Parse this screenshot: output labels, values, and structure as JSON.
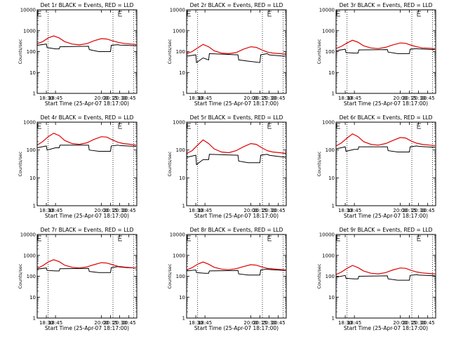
{
  "figure": {
    "line_colors": {
      "events": "#000000",
      "lld": "#dd0000"
    }
  },
  "chart_data": [
    {
      "type": "line",
      "title": "Det 1r BLACK = Events, RED = LLD",
      "xlabel": "Start Time (25-Apr-07 18:17:00)",
      "ylabel": "Counts/sec",
      "yscale": "log",
      "ylim": [
        1,
        10000
      ],
      "xlim": [
        18.25,
        20.9667
      ],
      "xticks": [
        "18:30",
        "18:45",
        "20:00",
        "20:15",
        "20:30",
        "20:45"
      ],
      "yticks": [
        "1",
        "10",
        "100",
        "1000",
        "10000"
      ],
      "vlines": [
        18.55,
        20.3167,
        20.8833
      ],
      "e_markers": [
        18.23,
        20.43
      ],
      "series": [
        {
          "name": "BLACK = Events",
          "color": "#000000",
          "x": [
            18.25,
            18.5,
            18.52,
            18.75,
            18.85,
            18.87,
            19.65,
            19.67,
            19.93,
            20.25,
            20.27,
            20.45,
            20.5,
            20.7,
            20.95
          ],
          "y": [
            200,
            230,
            155,
            135,
            135,
            170,
            180,
            125,
            100,
            100,
            200,
            215,
            205,
            200,
            190
          ]
        },
        {
          "name": "RED = LLD",
          "color": "#dd0000",
          "x": [
            18.25,
            18.4,
            18.55,
            18.7,
            18.85,
            19.0,
            19.2,
            19.4,
            19.6,
            19.8,
            20.0,
            20.15,
            20.3,
            20.45,
            20.6,
            20.8,
            20.95
          ],
          "y": [
            240,
            300,
            450,
            560,
            450,
            300,
            230,
            210,
            240,
            330,
            420,
            400,
            330,
            280,
            250,
            230,
            220
          ]
        }
      ]
    },
    {
      "type": "line",
      "title": "Det 2r BLACK = Events, RED = LLD",
      "xlabel": "Start Time (25-Apr-07 18:17:00)",
      "ylabel": "Counts/sec",
      "yscale": "log",
      "ylim": [
        1,
        10000
      ],
      "xlim": [
        18.25,
        20.9667
      ],
      "xticks": [
        "18:30",
        "18:45",
        "20:00",
        "20:15",
        "20:30",
        "20:45"
      ],
      "yticks": [
        "1",
        "10",
        "100",
        "1000",
        "10000"
      ],
      "vlines": [
        18.55,
        20.3167,
        20.8833
      ],
      "e_markers": [
        18.23,
        20.43
      ],
      "series": [
        {
          "name": "BLACK = Events",
          "color": "#000000",
          "x": [
            18.25,
            18.5,
            18.52,
            18.7,
            18.85,
            18.87,
            19.65,
            19.67,
            19.93,
            20.25,
            20.27,
            20.45,
            20.5,
            20.7,
            20.95
          ],
          "y": [
            60,
            70,
            30,
            50,
            40,
            80,
            70,
            40,
            35,
            30,
            70,
            80,
            70,
            65,
            60
          ]
        },
        {
          "name": "RED = LLD",
          "color": "#dd0000",
          "x": [
            18.25,
            18.4,
            18.55,
            18.7,
            18.85,
            19.0,
            19.2,
            19.4,
            19.6,
            19.8,
            20.0,
            20.15,
            20.3,
            20.45,
            20.6,
            20.8,
            20.95
          ],
          "y": [
            80,
            100,
            150,
            220,
            170,
            110,
            85,
            80,
            90,
            130,
            170,
            160,
            120,
            95,
            85,
            80,
            75
          ]
        }
      ]
    },
    {
      "type": "line",
      "title": "Det 3r BLACK = Events, RED = LLD",
      "xlabel": "Start Time (25-Apr-07 18:17:00)",
      "ylabel": "Counts/sec",
      "yscale": "log",
      "ylim": [
        1,
        10000
      ],
      "xlim": [
        18.25,
        20.9667
      ],
      "xticks": [
        "18:30",
        "18:45",
        "20:00",
        "20:15",
        "20:30",
        "20:45"
      ],
      "yticks": [
        "1",
        "10",
        "100",
        "1000",
        "10000"
      ],
      "vlines": [
        18.55,
        20.3167,
        20.8833
      ],
      "e_markers": [
        18.23,
        20.43
      ],
      "series": [
        {
          "name": "BLACK = Events",
          "color": "#000000",
          "x": [
            18.25,
            18.5,
            18.52,
            18.75,
            18.85,
            18.87,
            19.65,
            19.67,
            19.93,
            20.25,
            20.27,
            20.45,
            20.5,
            20.7,
            20.95
          ],
          "y": [
            110,
            130,
            90,
            85,
            85,
            120,
            125,
            95,
            80,
            80,
            130,
            140,
            135,
            130,
            125
          ]
        },
        {
          "name": "RED = LLD",
          "color": "#dd0000",
          "x": [
            18.25,
            18.4,
            18.55,
            18.7,
            18.85,
            19.0,
            19.2,
            19.4,
            19.6,
            19.8,
            20.0,
            20.15,
            20.3,
            20.45,
            20.6,
            20.8,
            20.95
          ],
          "y": [
            140,
            180,
            260,
            350,
            280,
            190,
            150,
            140,
            160,
            210,
            260,
            250,
            200,
            170,
            150,
            145,
            140
          ]
        }
      ]
    },
    {
      "type": "line",
      "title": "Det 4r BLACK = Events, RED = LLD",
      "xlabel": "Start Time (25-Apr-07 18:17:00)",
      "ylabel": "Counts/sec",
      "yscale": "log",
      "ylim": [
        1,
        1000
      ],
      "xlim": [
        18.25,
        20.9667
      ],
      "xticks": [
        "18:30",
        "18:45",
        "20:00",
        "20:15",
        "20:30",
        "20:45"
      ],
      "yticks": [
        "1",
        "10",
        "100",
        "1000"
      ],
      "vlines": [
        18.55,
        20.3167,
        20.8833
      ],
      "e_markers": [
        18.23,
        20.43
      ],
      "series": [
        {
          "name": "BLACK = Events",
          "color": "#000000",
          "x": [
            18.25,
            18.5,
            18.52,
            18.75,
            18.85,
            18.87,
            19.65,
            19.67,
            19.93,
            20.25,
            20.27,
            20.45,
            20.5,
            20.7,
            20.95
          ],
          "y": [
            120,
            140,
            100,
            120,
            120,
            150,
            150,
            100,
            90,
            90,
            140,
            150,
            145,
            140,
            135
          ]
        },
        {
          "name": "RED = LLD",
          "color": "#dd0000",
          "x": [
            18.25,
            18.4,
            18.55,
            18.7,
            18.85,
            19.0,
            19.2,
            19.4,
            19.6,
            19.8,
            20.0,
            20.15,
            20.3,
            20.45,
            20.6,
            20.8,
            20.95
          ],
          "y": [
            150,
            200,
            300,
            400,
            330,
            220,
            170,
            160,
            180,
            240,
            300,
            290,
            230,
            190,
            170,
            160,
            150
          ]
        }
      ]
    },
    {
      "type": "line",
      "title": "Det 5r BLACK = Events, RED = LLD",
      "xlabel": "Start Time (25-Apr-07 18:17:00)",
      "ylabel": "Counts/sec",
      "yscale": "log",
      "ylim": [
        1,
        1000
      ],
      "xlim": [
        18.25,
        20.9667
      ],
      "xticks": [
        "18:30",
        "18:45",
        "20:00",
        "20:15",
        "20:30",
        "20:45"
      ],
      "yticks": [
        "1",
        "10",
        "100",
        "1000"
      ],
      "vlines": [
        18.55,
        20.3167,
        20.8833
      ],
      "e_markers": [
        18.23,
        20.43
      ],
      "series": [
        {
          "name": "BLACK = Events",
          "color": "#000000",
          "x": [
            18.25,
            18.5,
            18.52,
            18.7,
            18.85,
            18.87,
            19.65,
            19.67,
            19.93,
            20.25,
            20.27,
            20.45,
            20.5,
            20.7,
            20.95
          ],
          "y": [
            55,
            65,
            30,
            45,
            45,
            70,
            65,
            40,
            35,
            35,
            65,
            70,
            65,
            60,
            55
          ]
        },
        {
          "name": "RED = LLD",
          "color": "#dd0000",
          "x": [
            18.25,
            18.4,
            18.55,
            18.7,
            18.85,
            19.0,
            19.2,
            19.4,
            19.6,
            19.8,
            20.0,
            20.15,
            20.3,
            20.45,
            20.6,
            20.8,
            20.95
          ],
          "y": [
            75,
            95,
            150,
            230,
            170,
            110,
            85,
            80,
            95,
            130,
            170,
            160,
            120,
            95,
            85,
            80,
            75
          ]
        }
      ]
    },
    {
      "type": "line",
      "title": "Det 6r BLACK = Events, RED = LLD",
      "xlabel": "Start Time (25-Apr-07 18:17:00)",
      "ylabel": "Counts/sec",
      "yscale": "log",
      "ylim": [
        1,
        1000
      ],
      "xlim": [
        18.25,
        20.9667
      ],
      "xticks": [
        "18:30",
        "18:45",
        "20:00",
        "20:15",
        "20:30",
        "20:45"
      ],
      "yticks": [
        "1",
        "10",
        "100",
        "1000"
      ],
      "vlines": [
        18.55,
        20.3167,
        20.8833
      ],
      "e_markers": [
        18.23,
        20.43
      ],
      "series": [
        {
          "name": "BLACK = Events",
          "color": "#000000",
          "x": [
            18.25,
            18.5,
            18.52,
            18.75,
            18.85,
            18.87,
            19.65,
            19.67,
            19.93,
            20.25,
            20.27,
            20.45,
            20.5,
            20.7,
            20.95
          ],
          "y": [
            110,
            130,
            90,
            105,
            105,
            130,
            130,
            95,
            85,
            85,
            130,
            140,
            135,
            130,
            125
          ]
        },
        {
          "name": "RED = LLD",
          "color": "#dd0000",
          "x": [
            18.25,
            18.4,
            18.55,
            18.7,
            18.85,
            19.0,
            19.2,
            19.4,
            19.6,
            19.8,
            20.0,
            20.15,
            20.3,
            20.45,
            20.6,
            20.8,
            20.95
          ],
          "y": [
            140,
            180,
            270,
            380,
            300,
            200,
            160,
            150,
            170,
            220,
            280,
            270,
            210,
            175,
            160,
            150,
            145
          ]
        }
      ]
    },
    {
      "type": "line",
      "title": "Det 7r BLACK = Events, RED = LLD",
      "xlabel": "Start Time (25-Apr-07 18:17:00)",
      "ylabel": "Counts/sec",
      "yscale": "log",
      "ylim": [
        1,
        10000
      ],
      "xlim": [
        18.25,
        20.9667
      ],
      "xticks": [
        "18:30",
        "18:45",
        "20:00",
        "20:15",
        "20:30",
        "20:45"
      ],
      "yticks": [
        "1",
        "10",
        "100",
        "1000",
        "10000"
      ],
      "vlines": [
        18.55,
        20.3167,
        20.8833
      ],
      "e_markers": [
        18.23,
        20.43
      ],
      "series": [
        {
          "name": "BLACK = Events",
          "color": "#000000",
          "x": [
            18.25,
            18.5,
            18.52,
            18.75,
            18.85,
            18.87,
            19.65,
            19.67,
            19.93,
            20.25,
            20.27,
            20.45,
            20.5,
            20.7,
            20.95
          ],
          "y": [
            220,
            250,
            190,
            180,
            180,
            230,
            240,
            170,
            150,
            150,
            260,
            290,
            280,
            260,
            250
          ]
        },
        {
          "name": "RED = LLD",
          "color": "#dd0000",
          "x": [
            18.25,
            18.4,
            18.55,
            18.7,
            18.85,
            19.0,
            19.2,
            19.4,
            19.6,
            19.8,
            20.0,
            20.15,
            20.3,
            20.45,
            20.6,
            20.8,
            20.95
          ],
          "y": [
            240,
            320,
            480,
            620,
            500,
            340,
            270,
            250,
            280,
            360,
            450,
            430,
            360,
            300,
            280,
            260,
            250
          ]
        }
      ]
    },
    {
      "type": "line",
      "title": "Det 8r BLACK = Events, RED = LLD",
      "xlabel": "Start Time (25-Apr-07 18:17:00)",
      "ylabel": "Counts/sec",
      "yscale": "log",
      "ylim": [
        1,
        10000
      ],
      "xlim": [
        18.25,
        20.9667
      ],
      "xticks": [
        "18:30",
        "18:45",
        "20:00",
        "20:15",
        "20:30",
        "20:45"
      ],
      "yticks": [
        "1",
        "10",
        "100",
        "1000",
        "10000"
      ],
      "vlines": [
        18.55,
        20.3167,
        20.8833
      ],
      "e_markers": [
        18.23,
        20.43
      ],
      "series": [
        {
          "name": "BLACK = Events",
          "color": "#000000",
          "x": [
            18.25,
            18.5,
            18.52,
            18.75,
            18.85,
            18.87,
            19.65,
            19.67,
            19.93,
            20.25,
            20.27,
            20.45,
            20.5,
            20.7,
            20.95
          ],
          "y": [
            180,
            200,
            150,
            140,
            140,
            180,
            190,
            130,
            115,
            115,
            200,
            220,
            210,
            200,
            190
          ]
        },
        {
          "name": "RED = LLD",
          "color": "#dd0000",
          "x": [
            18.25,
            18.4,
            18.55,
            18.7,
            18.85,
            19.0,
            19.2,
            19.4,
            19.6,
            19.8,
            20.0,
            20.15,
            20.3,
            20.45,
            20.6,
            20.8,
            20.95
          ],
          "y": [
            200,
            260,
            380,
            480,
            380,
            270,
            220,
            205,
            230,
            290,
            360,
            340,
            280,
            240,
            225,
            210,
            200
          ]
        }
      ]
    },
    {
      "type": "line",
      "title": "Det 9r BLACK = Events, RED = LLD",
      "xlabel": "Start Time (25-Apr-07 18:17:00)",
      "ylabel": "Counts/sec",
      "yscale": "log",
      "ylim": [
        1,
        10000
      ],
      "xlim": [
        18.25,
        20.9667
      ],
      "xticks": [
        "18:30",
        "18:45",
        "20:00",
        "20:15",
        "20:30",
        "20:45"
      ],
      "yticks": [
        "1",
        "10",
        "100",
        "1000",
        "10000"
      ],
      "vlines": [
        18.55,
        20.3167,
        20.8833
      ],
      "e_markers": [
        18.23,
        20.43
      ],
      "series": [
        {
          "name": "BLACK = Events",
          "color": "#000000",
          "x": [
            18.25,
            18.5,
            18.52,
            18.75,
            18.85,
            18.87,
            19.65,
            19.67,
            19.93,
            20.25,
            20.27,
            20.45,
            20.5,
            20.7,
            20.95
          ],
          "y": [
            90,
            110,
            80,
            75,
            75,
            100,
            105,
            75,
            65,
            65,
            110,
            120,
            115,
            110,
            105
          ]
        },
        {
          "name": "RED = LLD",
          "color": "#dd0000",
          "x": [
            18.25,
            18.4,
            18.55,
            18.7,
            18.85,
            19.0,
            19.2,
            19.4,
            19.6,
            19.8,
            20.0,
            20.15,
            20.3,
            20.45,
            20.6,
            20.8,
            20.95
          ],
          "y": [
            120,
            160,
            240,
            330,
            260,
            180,
            140,
            130,
            150,
            200,
            250,
            240,
            190,
            160,
            145,
            135,
            130
          ]
        }
      ]
    }
  ]
}
